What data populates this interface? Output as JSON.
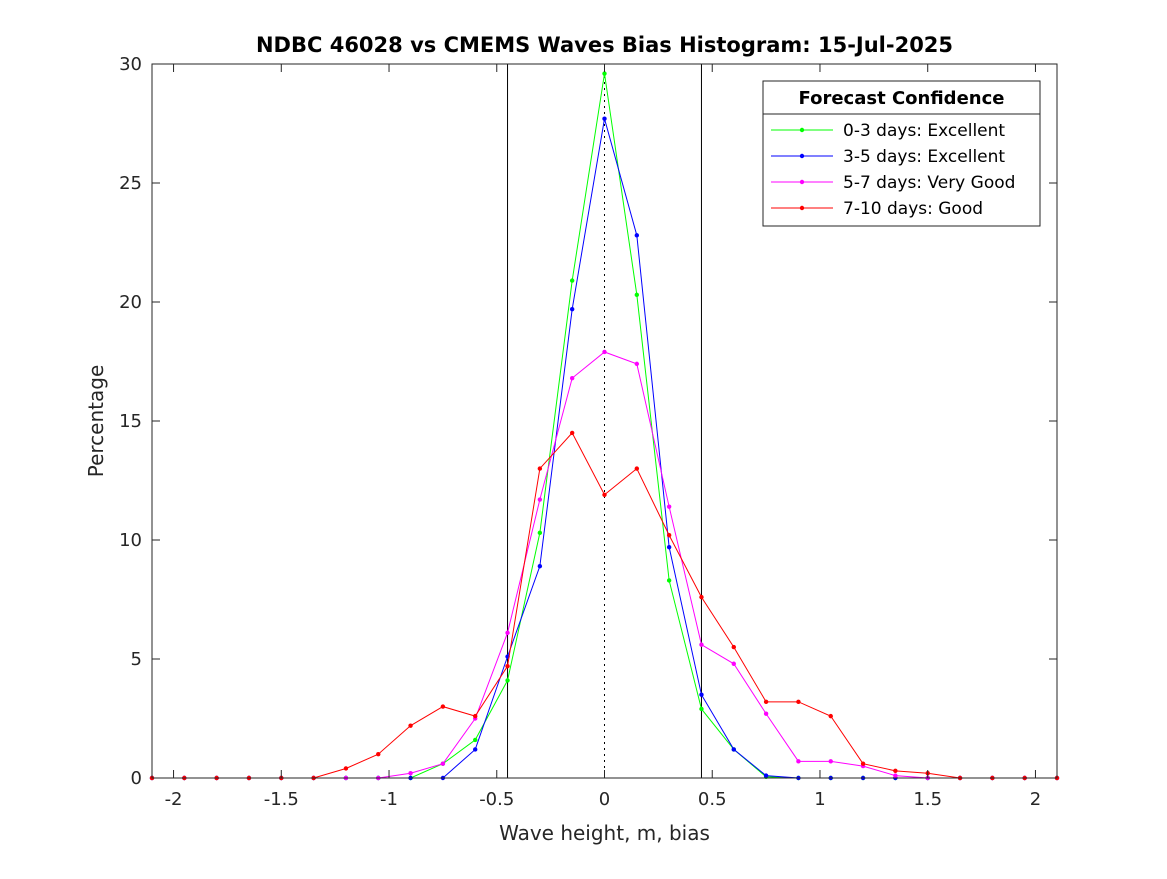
{
  "chart_data": {
    "type": "line",
    "title": "NDBC 46028 vs CMEMS Waves Bias Histogram: 15-Jul-2025",
    "xlabel": "Wave height, m, bias",
    "ylabel": "Percentage",
    "xlim": [
      -2.1,
      2.1
    ],
    "ylim": [
      0,
      30
    ],
    "xticks": [
      -2,
      -1.5,
      -1,
      -0.5,
      0,
      0.5,
      1,
      1.5,
      2
    ],
    "xtick_labels": [
      "-2",
      "-1.5",
      "-1",
      "-0.5",
      "0",
      "0.5",
      "1",
      "1.5",
      "2"
    ],
    "yticks": [
      0,
      5,
      10,
      15,
      20,
      25,
      30
    ],
    "ytick_labels": [
      "0",
      "5",
      "10",
      "15",
      "20",
      "25",
      "30"
    ],
    "grid": false,
    "legend_title": "Forecast Confidence",
    "legend_position": "top-right",
    "reference_lines": {
      "solid_x": [
        -0.45,
        0.45
      ],
      "dotted_x": [
        0
      ]
    },
    "x": [
      -2.1,
      -1.95,
      -1.8,
      -1.65,
      -1.5,
      -1.35,
      -1.2,
      -1.05,
      -0.9,
      -0.75,
      -0.6,
      -0.45,
      -0.3,
      -0.15,
      0,
      0.15,
      0.3,
      0.45,
      0.6,
      0.75,
      0.9,
      1.05,
      1.2,
      1.35,
      1.5,
      1.65,
      1.8,
      1.95,
      2.1
    ],
    "series": [
      {
        "name": "0-3 days: Excellent",
        "color": "#00ff00",
        "values": [
          0,
          0,
          0,
          0,
          0,
          0,
          0,
          0,
          0,
          0.6,
          1.6,
          4.1,
          10.3,
          20.9,
          29.6,
          20.3,
          8.3,
          2.9,
          1.2,
          0.05,
          0,
          0,
          0,
          0,
          0,
          0,
          0,
          0,
          0
        ]
      },
      {
        "name": "3-5 days: Excellent",
        "color": "#0000ff",
        "values": [
          0,
          0,
          0,
          0,
          0,
          0,
          0,
          0,
          0,
          0,
          1.2,
          5.1,
          8.9,
          19.7,
          27.7,
          22.8,
          9.7,
          3.5,
          1.2,
          0.1,
          0,
          0,
          0,
          0,
          0,
          0,
          0,
          0,
          0
        ]
      },
      {
        "name": "5-7 days: Very Good",
        "color": "#ff00ff",
        "values": [
          0,
          0,
          0,
          0,
          0,
          0,
          0,
          0,
          0.2,
          0.6,
          2.5,
          6.1,
          11.7,
          16.8,
          17.9,
          17.4,
          11.4,
          5.6,
          4.8,
          2.7,
          0.7,
          0.7,
          0.5,
          0.1,
          0,
          0,
          0,
          0,
          0
        ]
      },
      {
        "name": "7-10 days: Good",
        "color": "#ff0000",
        "values": [
          0,
          0,
          0,
          0,
          0,
          0,
          0.4,
          1.0,
          2.2,
          3.0,
          2.6,
          4.7,
          13.0,
          14.5,
          11.9,
          13.0,
          10.2,
          7.6,
          5.5,
          3.2,
          3.2,
          2.6,
          0.6,
          0.3,
          0.2,
          0,
          0,
          0,
          0
        ]
      }
    ]
  }
}
